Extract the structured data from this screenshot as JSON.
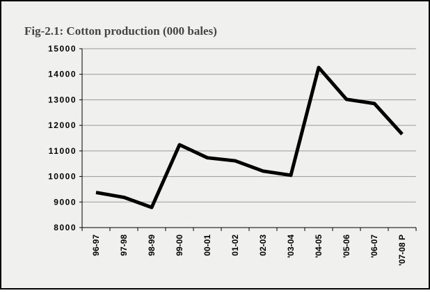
{
  "chart_data": {
    "type": "line",
    "title": "Fig-2.1: Cotton production (000 bales)",
    "categories": [
      "96-97",
      "97-98",
      "98-99",
      "99-00",
      "00-01",
      "01-02",
      "02-03",
      "'03-04",
      "'04-05",
      "'05-06",
      "'06-07",
      "'07-08 P"
    ],
    "values": [
      9374,
      9184,
      8790,
      11240,
      10732,
      10613,
      10211,
      10048,
      14265,
      13019,
      12856,
      11655
    ],
    "color": "#000000",
    "ylim": [
      8000,
      15000
    ],
    "yticks": [
      8000,
      9000,
      10000,
      11000,
      12000,
      13000,
      14000,
      15000
    ],
    "grid": true
  }
}
